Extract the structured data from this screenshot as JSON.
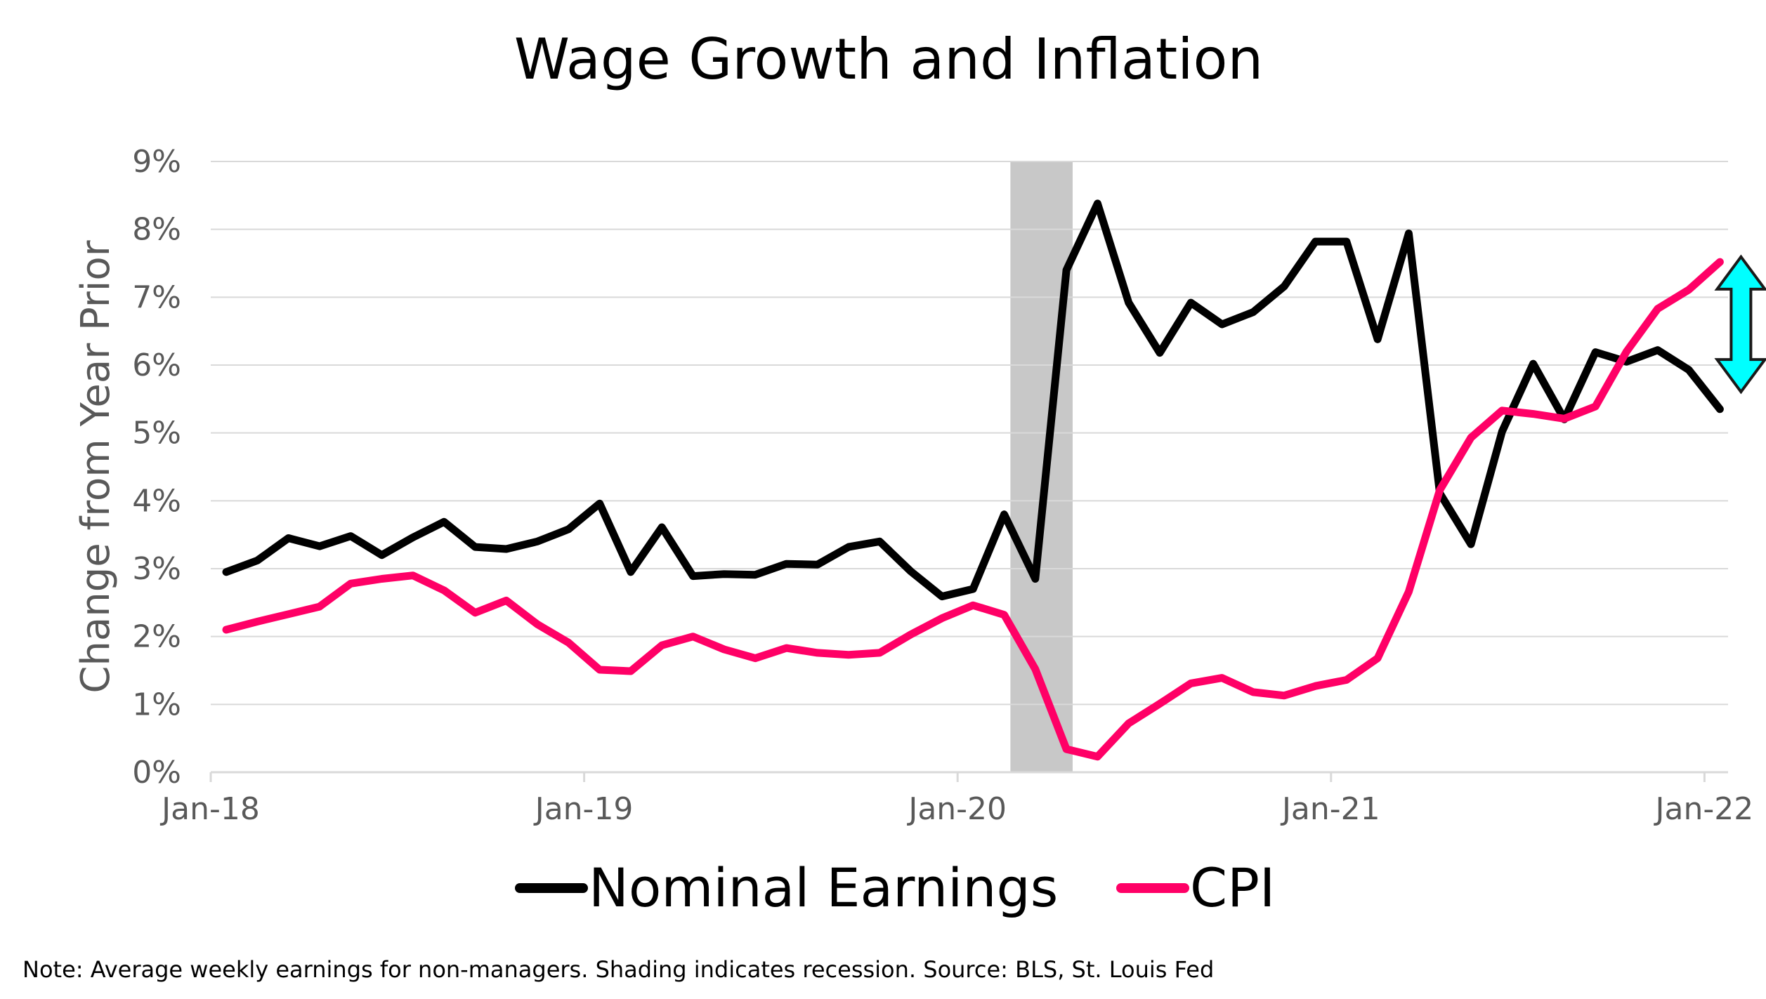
{
  "chart_data": {
    "type": "line",
    "title": "Wage Growth and Inflation",
    "ylabel": "Change from Year Prior",
    "xlabel": "",
    "ylim": [
      0,
      9
    ],
    "y_ticks": [
      0,
      1,
      2,
      3,
      4,
      5,
      6,
      7,
      8,
      9
    ],
    "y_tick_labels": [
      "0%",
      "1%",
      "2%",
      "3%",
      "4%",
      "5%",
      "6%",
      "7%",
      "8%",
      "9%"
    ],
    "x_start": "2018-01",
    "x_ticks": [
      "2018-01",
      "2019-01",
      "2020-01",
      "2021-01",
      "2022-01"
    ],
    "x_tick_labels": [
      "Jan-18",
      "Jan-19",
      "Jan-20",
      "Jan-21",
      "Jan-22"
    ],
    "grid": true,
    "legend_position": "bottom",
    "months": [
      "2018-01",
      "2018-02",
      "2018-03",
      "2018-04",
      "2018-05",
      "2018-06",
      "2018-07",
      "2018-08",
      "2018-09",
      "2018-10",
      "2018-11",
      "2018-12",
      "2019-01",
      "2019-02",
      "2019-03",
      "2019-04",
      "2019-05",
      "2019-06",
      "2019-07",
      "2019-08",
      "2019-09",
      "2019-10",
      "2019-11",
      "2019-12",
      "2020-01",
      "2020-02",
      "2020-03",
      "2020-04",
      "2020-05",
      "2020-06",
      "2020-07",
      "2020-08",
      "2020-09",
      "2020-10",
      "2020-11",
      "2020-12",
      "2021-01",
      "2021-02",
      "2021-03",
      "2021-04",
      "2021-05",
      "2021-06",
      "2021-07",
      "2021-08",
      "2021-09",
      "2021-10",
      "2021-11",
      "2021-12",
      "2022-01"
    ],
    "series": [
      {
        "name": "Nominal Earnings",
        "color": "#000000",
        "values": [
          2.95,
          3.12,
          3.45,
          3.33,
          3.48,
          3.2,
          3.46,
          3.69,
          3.32,
          3.29,
          3.4,
          3.58,
          3.96,
          2.95,
          3.61,
          2.89,
          2.92,
          2.91,
          3.07,
          3.06,
          3.32,
          3.4,
          2.96,
          2.59,
          2.7,
          3.8,
          2.85,
          7.4,
          8.38,
          6.92,
          6.18,
          6.92,
          6.6,
          6.78,
          7.16,
          7.82,
          7.82,
          6.38,
          7.94,
          4.11,
          3.36,
          5.02,
          6.02,
          5.2,
          6.19,
          6.05,
          6.22,
          5.93,
          5.35
        ]
      },
      {
        "name": "CPI",
        "color": "#FF0066",
        "values": [
          2.1,
          2.22,
          2.33,
          2.44,
          2.78,
          2.85,
          2.9,
          2.68,
          2.35,
          2.53,
          2.18,
          1.91,
          1.51,
          1.49,
          1.87,
          2.0,
          1.81,
          1.68,
          1.83,
          1.76,
          1.73,
          1.76,
          2.03,
          2.27,
          2.46,
          2.32,
          1.52,
          0.34,
          0.23,
          0.72,
          1.01,
          1.31,
          1.39,
          1.18,
          1.13,
          1.27,
          1.36,
          1.68,
          2.66,
          4.16,
          4.93,
          5.33,
          5.28,
          5.21,
          5.39,
          6.2,
          6.83,
          7.11,
          7.52
        ]
      }
    ],
    "recession_shading": {
      "start": "2020-02",
      "end": "2020-04",
      "color": "#C8C8C8"
    },
    "gap_arrow": {
      "month": "2022-01",
      "from": 5.75,
      "to": 7.45,
      "color": "#00FFFF"
    },
    "note": "Note: Average weekly earnings for non-managers. Shading indicates recession. Source: BLS, St. Louis Fed"
  }
}
